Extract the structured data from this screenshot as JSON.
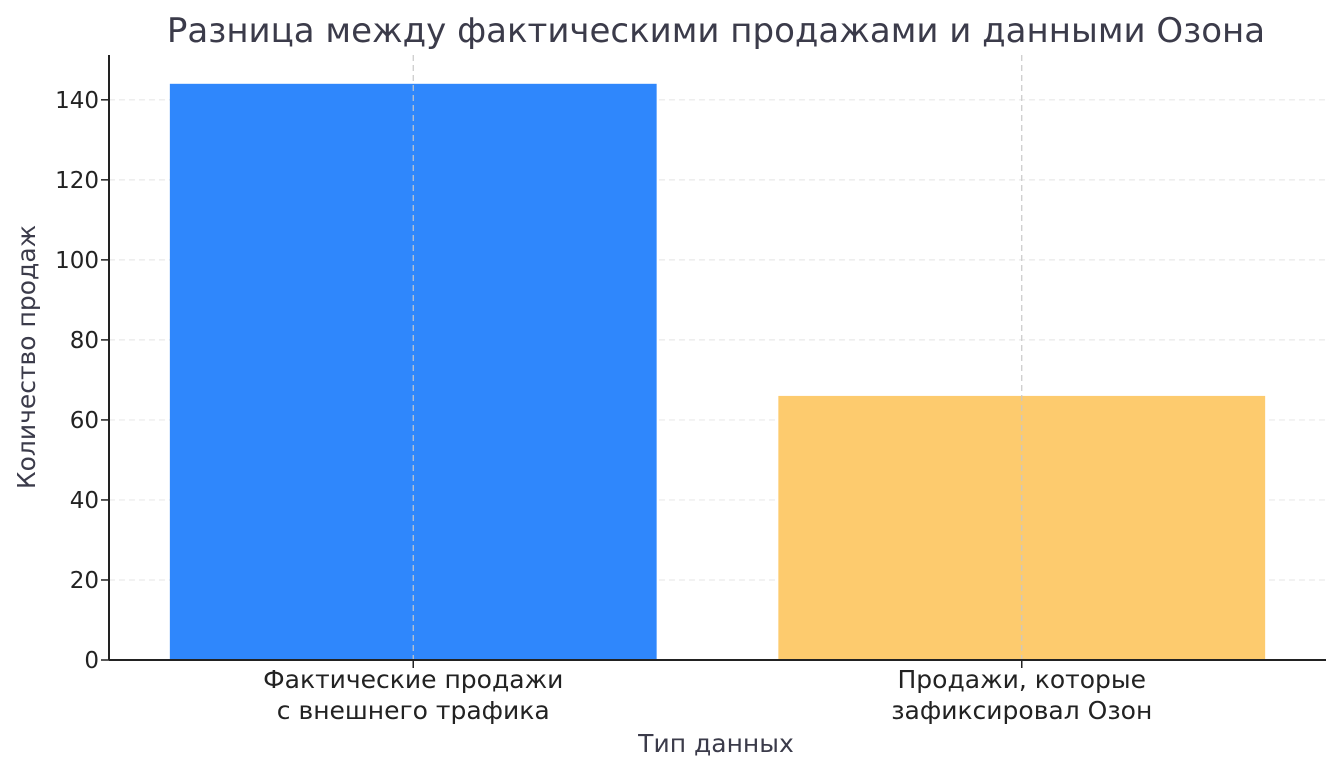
{
  "chart_data": {
    "type": "bar",
    "title": "Разница между фактическими продажами и данными Озона",
    "xlabel": "Тип данных",
    "ylabel": "Количество продаж",
    "categories": [
      [
        "Фактические продажи",
        "с внешнего трафика"
      ],
      [
        "Продажи, которые",
        "зафиксировал Озон"
      ]
    ],
    "values": [
      144,
      66
    ],
    "colors": [
      "#2f87fc",
      "#fdcb6e"
    ],
    "ylim": [
      0,
      151.2
    ],
    "yticks": [
      0,
      20,
      40,
      60,
      80,
      100,
      120,
      140
    ],
    "grid": true
  }
}
